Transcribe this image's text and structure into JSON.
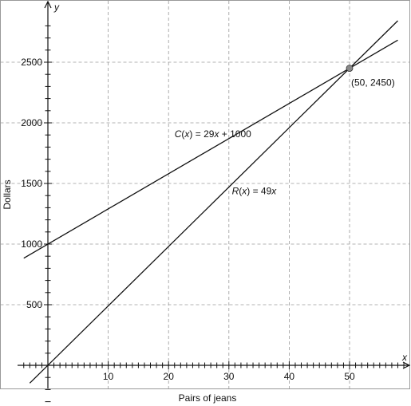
{
  "chart_data": {
    "type": "line",
    "title": "",
    "xlabel": "Pairs of jeans",
    "ylabel": "Dollars",
    "x_axis_letter": "x",
    "y_axis_letter": "y",
    "xlim": [
      -4,
      59
    ],
    "ylim": [
      -350,
      2850
    ],
    "grid": true,
    "x_ticks": [
      10,
      20,
      30,
      40,
      50
    ],
    "y_ticks": [
      500,
      1000,
      1500,
      2000,
      2500
    ],
    "series": [
      {
        "label_parts": [
          "C",
          "(",
          "x",
          ") = 29",
          "x",
          " + 1000"
        ],
        "label_at": [
          21,
          1880
        ],
        "points": [
          [
            -4,
            884
          ],
          [
            58,
            2682
          ]
        ]
      },
      {
        "label_parts": [
          "R",
          "(",
          "x",
          ") = 49",
          "x"
        ],
        "label_at": [
          30.5,
          1410
        ],
        "points": [
          [
            -3,
            -147
          ],
          [
            58,
            2842
          ]
        ]
      }
    ],
    "intersection": {
      "x": 50,
      "y": 2450,
      "label": "(50, 2450)",
      "color": "#8a8a8a"
    }
  }
}
